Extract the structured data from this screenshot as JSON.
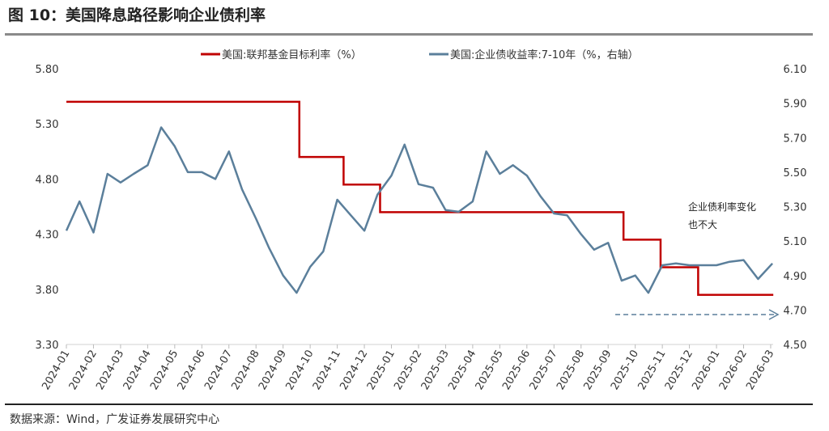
{
  "title": "图 10：美国降息路径影响企业债利率",
  "source": "数据来源：Wind，广发证券发展研究中心",
  "chart_data": {
    "type": "line",
    "legend_placement": "top",
    "grid": false,
    "y_left": {
      "range": [
        3.3,
        5.8
      ],
      "ticks": [
        "5.80",
        "5.30",
        "4.80",
        "4.30",
        "3.80",
        "3.30"
      ]
    },
    "y_right": {
      "range": [
        4.5,
        6.1
      ],
      "ticks": [
        "6.10",
        "5.90",
        "5.70",
        "5.50",
        "5.30",
        "5.10",
        "4.90",
        "4.70",
        "4.50"
      ]
    },
    "x_ticks": [
      "2024-01",
      "2024-02",
      "2024-03",
      "2024-04",
      "2024-05",
      "2024-06",
      "2024-07",
      "2024-08",
      "2024-09",
      "2024-10",
      "2024-11",
      "2024-12",
      "2025-01",
      "2025-02",
      "2025-03",
      "2025-04",
      "2025-05",
      "2025-06",
      "2025-07",
      "2025-08",
      "2025-09",
      "2025-10",
      "2025-11",
      "2025-12",
      "2026-01",
      "2026-02",
      "2026-03"
    ],
    "series": [
      {
        "name": "美国:联邦基金目标利率（%）",
        "color": "#c00000",
        "axis": "left",
        "step": true,
        "points": [
          [
            "2024-01-01",
            5.5
          ],
          [
            "2024-09-19",
            5.0
          ],
          [
            "2024-11-08",
            4.75
          ],
          [
            "2024-12-19",
            4.5
          ],
          [
            "2025-09-18",
            4.25
          ],
          [
            "2025-10-30",
            4.0
          ],
          [
            "2025-12-11",
            3.75
          ],
          [
            "2026-03-04",
            3.75
          ]
        ]
      },
      {
        "name": "美国:企业债收益率:7-10年（%，右轴）",
        "color": "#5b7f9b",
        "axis": "right",
        "points": [
          [
            "2024-01-01",
            5.16
          ],
          [
            "2024-01-16",
            5.33
          ],
          [
            "2024-02-01",
            5.15
          ],
          [
            "2024-02-16",
            5.49
          ],
          [
            "2024-03-01",
            5.44
          ],
          [
            "2024-03-16",
            5.49
          ],
          [
            "2024-04-01",
            5.54
          ],
          [
            "2024-04-16",
            5.76
          ],
          [
            "2024-05-01",
            5.65
          ],
          [
            "2024-05-16",
            5.5
          ],
          [
            "2024-06-01",
            5.5
          ],
          [
            "2024-06-16",
            5.46
          ],
          [
            "2024-07-01",
            5.62
          ],
          [
            "2024-07-16",
            5.4
          ],
          [
            "2024-08-01",
            5.23
          ],
          [
            "2024-08-16",
            5.06
          ],
          [
            "2024-09-01",
            4.9
          ],
          [
            "2024-09-16",
            4.8
          ],
          [
            "2024-10-01",
            4.95
          ],
          [
            "2024-10-16",
            5.04
          ],
          [
            "2024-11-01",
            5.34
          ],
          [
            "2024-11-16",
            5.25
          ],
          [
            "2024-12-01",
            5.16
          ],
          [
            "2024-12-16",
            5.37
          ],
          [
            "2025-01-01",
            5.48
          ],
          [
            "2025-01-16",
            5.66
          ],
          [
            "2025-02-01",
            5.43
          ],
          [
            "2025-02-16",
            5.41
          ],
          [
            "2025-03-01",
            5.28
          ],
          [
            "2025-03-16",
            5.27
          ],
          [
            "2025-04-01",
            5.33
          ],
          [
            "2025-04-16",
            5.62
          ],
          [
            "2025-05-01",
            5.49
          ],
          [
            "2025-05-16",
            5.54
          ],
          [
            "2025-06-01",
            5.48
          ],
          [
            "2025-06-16",
            5.36
          ],
          [
            "2025-07-01",
            5.26
          ],
          [
            "2025-07-16",
            5.25
          ],
          [
            "2025-08-01",
            5.14
          ],
          [
            "2025-08-16",
            5.05
          ],
          [
            "2025-09-01",
            5.09
          ],
          [
            "2025-09-16",
            4.87
          ],
          [
            "2025-10-01",
            4.9
          ],
          [
            "2025-10-16",
            4.8
          ],
          [
            "2025-11-01",
            4.96
          ],
          [
            "2025-11-16",
            4.97
          ],
          [
            "2025-12-01",
            4.96
          ],
          [
            "2025-12-16",
            4.96
          ],
          [
            "2026-01-01",
            4.96
          ],
          [
            "2026-01-16",
            4.98
          ],
          [
            "2026-02-01",
            4.99
          ],
          [
            "2026-02-16",
            4.88
          ],
          [
            "2026-03-03",
            4.97
          ]
        ]
      }
    ],
    "annotation": {
      "lines": [
        "企业债利率变化",
        "也不大"
      ],
      "arrow": "dashed right arrow",
      "arrow_color": "#5b7f9b"
    }
  }
}
